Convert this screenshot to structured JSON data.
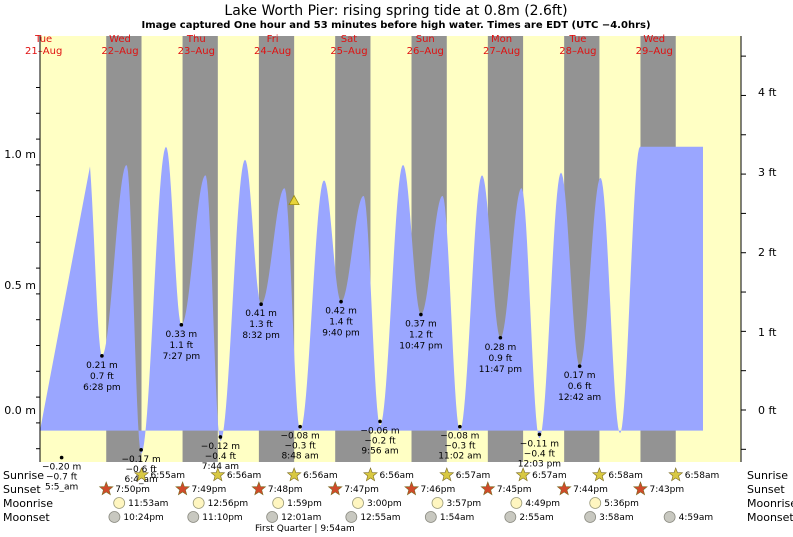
{
  "header": {
    "title": "Lake Worth Pier: rising  spring tide at 0.8m (2.6ft)",
    "subtitle": "Image captured One hour and 53 minutes before high water. Times are EDT (UTC −4.0hrs)"
  },
  "days": [
    {
      "dow": "Tue",
      "date": "21–Aug"
    },
    {
      "dow": "Wed",
      "date": "22–Aug"
    },
    {
      "dow": "Thu",
      "date": "23–Aug"
    },
    {
      "dow": "Fri",
      "date": "24–Aug"
    },
    {
      "dow": "Sat",
      "date": "25–Aug"
    },
    {
      "dow": "Sun",
      "date": "26–Aug"
    },
    {
      "dow": "Mon",
      "date": "27–Aug"
    },
    {
      "dow": "Tue",
      "date": "28–Aug"
    },
    {
      "dow": "Wed",
      "date": "29–Aug"
    }
  ],
  "axes": {
    "left_ticks": [
      "1.0 m",
      "0.5 m",
      "0.0 m"
    ],
    "right_ticks": [
      "4 ft",
      "3 ft",
      "2 ft",
      "1 ft",
      "0 ft"
    ]
  },
  "chart_data": {
    "type": "area",
    "ylabel_left": "m",
    "ylabel_right": "ft",
    "ylim_m": [
      -0.2,
      1.25
    ],
    "labelled_tides": [
      {
        "day": 1,
        "time": "6:28 pm",
        "m": "0.21 m",
        "ft": "0.7 ft",
        "t_hours": 42.47,
        "h": 0.21
      },
      {
        "day": 2,
        "time": "7:27 pm",
        "m": "0.33 m",
        "ft": "1.1 ft",
        "t_hours": 67.45,
        "h": 0.33
      },
      {
        "day": 3,
        "time": "8:32 pm",
        "m": "0.41 m",
        "ft": "1.3 ft",
        "t_hours": 92.53,
        "h": 0.41
      },
      {
        "day": 4,
        "time": "9:40 pm",
        "m": "0.42 m",
        "ft": "1.4 ft",
        "t_hours": 117.67,
        "h": 0.42
      },
      {
        "day": 5,
        "time": "10:47 pm",
        "m": "0.37 m",
        "ft": "1.2 ft",
        "t_hours": 142.78,
        "h": 0.37
      },
      {
        "day": 6,
        "time": "11:47 pm",
        "m": "0.28 m",
        "ft": "0.9 ft",
        "t_hours": 167.78,
        "h": 0.28
      },
      {
        "day": 8,
        "time": "12:42 am",
        "m": "0.17 m",
        "ft": "0.6 ft",
        "t_hours": 192.7,
        "h": 0.17
      }
    ],
    "low_tides": [
      {
        "time": "5:5_am",
        "m": "−0.20 m",
        "ft": "−0.7 ft",
        "t_hours": 29.8,
        "h": -0.2
      },
      {
        "time": "6:4_am",
        "m": "−0.17 m",
        "ft": "−0.6 ft",
        "t_hours": 54.8,
        "h": -0.17
      },
      {
        "time": "7:44 am",
        "m": "−0.12 m",
        "ft": "−0.4 ft",
        "t_hours": 79.73,
        "h": -0.12
      },
      {
        "time": "8:48 am",
        "m": "−0.08 m",
        "ft": "−0.3 ft",
        "t_hours": 104.8,
        "h": -0.08
      },
      {
        "time": "9:56 am",
        "m": "−0.06 m",
        "ft": "−0.2 ft",
        "t_hours": 129.93,
        "h": -0.06
      },
      {
        "time": "11:02 am",
        "m": "−0.08 m",
        "ft": "−0.3 ft",
        "t_hours": 155.03,
        "h": -0.08
      },
      {
        "time": "12:03 pm",
        "m": "−0.11 m",
        "ft": "−0.4 ft",
        "t_hours": 180.05,
        "h": -0.11
      }
    ],
    "high_tide_peaks_m": [
      1.02,
      0.95,
      1.02,
      0.91,
      0.97,
      0.86,
      0.89,
      0.83,
      0.95,
      0.83,
      0.91,
      0.86,
      0.92,
      0.9,
      1.02,
      0.96
    ],
    "current_height_m": 0.8
  },
  "rows": {
    "sunrise": {
      "label": "Sunrise",
      "times": [
        "6:55am",
        "6:56am",
        "6:56am",
        "6:56am",
        "6:57am",
        "6:57am",
        "6:58am",
        "6:58am"
      ]
    },
    "sunset": {
      "label": "Sunset",
      "times": [
        "7:50pm",
        "7:49pm",
        "7:48pm",
        "7:47pm",
        "7:46pm",
        "7:45pm",
        "7:44pm",
        "7:43pm"
      ]
    },
    "moonrise": {
      "label": "Moonrise",
      "times": [
        "11:53am",
        "12:56pm",
        "1:59pm",
        "3:00pm",
        "3:57pm",
        "4:49pm",
        "5:36pm"
      ]
    },
    "moonset": {
      "label": "Moonset",
      "times": [
        "10:24pm",
        "11:10pm",
        "12:01am",
        "12:55am",
        "1:54am",
        "2:55am",
        "3:58am",
        "4:59am"
      ]
    }
  },
  "footer": {
    "moon_phase": "First Quarter | 9:54am"
  },
  "colors": {
    "day": "#ffffc4",
    "night": "#939393",
    "water": "#9aa6ff",
    "title": "#000000",
    "dates": "#e01010",
    "star_day": "#d8c842",
    "star_night": "#d04a2a"
  }
}
